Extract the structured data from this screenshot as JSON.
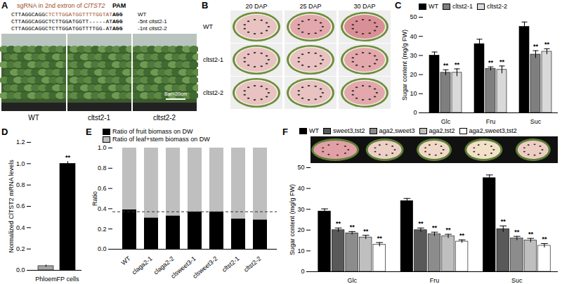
{
  "panels": [
    {
      "panel": "A",
      "type": "diagram",
      "heading": {
        "text": "sgRNA in 2nd extron of ",
        "gene": "ClTST2",
        "pam": "PAM"
      },
      "sequences": [
        {
          "prefix": "CTTAGGCAGG",
          "target": "CTCTTGGATGGTTTTGGTAT",
          "pam": "AGG",
          "label": "WT"
        },
        {
          "prefix": "CTTAGGCAGGCTCTTGGATGGTT-----AT",
          "pam": "AGG",
          "label": "-5nt cltst2-1"
        },
        {
          "prefix": "CTTAGGCAGGCTCTTGGATGGTTTTGG-AT",
          "pam": "AGG",
          "label": "-1nt cltst2-2"
        }
      ],
      "photo": {
        "scale_bar": "Bar=20cm",
        "labels": [
          "WT",
          "cltst2-1",
          "cltst2-2"
        ]
      }
    },
    {
      "panel": "B",
      "type": "photo_grid",
      "columns": [
        "20 DAP",
        "25 DAP",
        "30 DAP"
      ],
      "rows": [
        "WT",
        "cltst2-1",
        "cltst2-2"
      ]
    }
  ],
  "chart_data": [
    {
      "panel": "C",
      "type": "bar",
      "ylabel": "Sugar content (mg/g FW)",
      "categories": [
        "Glc",
        "Fru",
        "Suc"
      ],
      "series": [
        {
          "name": "WT",
          "color": "#000000",
          "values": [
            30,
            36,
            45
          ],
          "errors": [
            1.8,
            2.5,
            2.5
          ]
        },
        {
          "name": "cltst2-1",
          "color": "#7f7f7f",
          "values": [
            21,
            23,
            30.5
          ],
          "errors": [
            1.5,
            1,
            2
          ]
        },
        {
          "name": "cltst2-2",
          "color": "#d9d9d9",
          "values": [
            21,
            22.5,
            32
          ],
          "errors": [
            2,
            2,
            1.5
          ]
        }
      ],
      "ylim": [
        0,
        50
      ],
      "yticks": [
        0,
        10,
        20,
        30,
        40,
        50
      ],
      "legend": "top",
      "annotations": [
        {
          "category": "Glc",
          "series": "cltst2-1",
          "text": "**"
        },
        {
          "category": "Glc",
          "series": "cltst2-2",
          "text": "**"
        },
        {
          "category": "Fru",
          "series": "cltst2-1",
          "text": "**"
        },
        {
          "category": "Fru",
          "series": "cltst2-2",
          "text": "**"
        },
        {
          "category": "Suc",
          "series": "cltst2-1",
          "text": "**"
        },
        {
          "category": "Suc",
          "series": "cltst2-2",
          "text": "**"
        }
      ]
    },
    {
      "panel": "D",
      "type": "bar",
      "ylabel": "Normalized ClTST2 mRNA levels",
      "categories": [
        "Phloem",
        "FP cells"
      ],
      "values": [
        0.04,
        1.0
      ],
      "errors": [
        0.01,
        0.02
      ],
      "colors": [
        "#a6a6a6",
        "#000000"
      ],
      "ylim": [
        0,
        1.2
      ],
      "yticks": [
        {
          "value": 0,
          "label": "0.0"
        },
        {
          "value": 0.2,
          "label": "0.2"
        },
        {
          "value": 0.4,
          "label": "0.4"
        },
        {
          "value": 0.6,
          "label": "0.6"
        },
        {
          "value": 0.8,
          "label": "0.8"
        },
        {
          "value": 1,
          "label": "1.0"
        },
        {
          "value": 1.2,
          "label": "1.2"
        }
      ],
      "annotations": [
        {
          "category": "FP cells",
          "text": "**"
        }
      ]
    },
    {
      "panel": "E",
      "type": "bar",
      "stacked": true,
      "ylabel": "Ratio",
      "categories": [
        "WT",
        "claga2-1",
        "claga2-2",
        "clsweet3-1",
        "clsweet3-2",
        "cltst2-1",
        "cltst2-2"
      ],
      "series": [
        {
          "name": "Ratio of fruit biomass on DW",
          "color": "#000000",
          "values": [
            0.39,
            0.31,
            0.33,
            0.37,
            0.37,
            0.3,
            0.29
          ]
        },
        {
          "name": "Ratio of leaf+stem biomass on DW",
          "color": "#bfbfbf",
          "values": [
            0.61,
            0.69,
            0.67,
            0.63,
            0.63,
            0.7,
            0.71
          ]
        }
      ],
      "reference_line": 0.37,
      "ylim": [
        0,
        1
      ],
      "yticks": [
        {
          "value": 0,
          "label": "0.0"
        },
        {
          "value": 0.2,
          "label": "0.2"
        },
        {
          "value": 0.4,
          "label": "0.4"
        },
        {
          "value": 0.6,
          "label": "0.6"
        },
        {
          "value": 0.8,
          "label": "0.8"
        },
        {
          "value": 1,
          "label": "1.0"
        }
      ],
      "legend": "top"
    },
    {
      "panel": "F",
      "type": "bar",
      "ylabel": "Sugar content (mg/g FW)",
      "categories": [
        "Glc",
        "Fru",
        "Suc"
      ],
      "series": [
        {
          "name": "WT",
          "color": "#000000",
          "values": [
            29,
            34,
            45
          ],
          "errors": [
            1.2,
            1.2,
            1.5
          ]
        },
        {
          "name": "sweet3,tst2",
          "color": "#595959",
          "values": [
            20,
            20,
            20.5
          ],
          "errors": [
            1,
            1,
            1.5
          ]
        },
        {
          "name": "aga2,sweet3",
          "color": "#8c8c8c",
          "values": [
            18.5,
            18,
            16
          ],
          "errors": [
            0.8,
            1,
            1
          ]
        },
        {
          "name": "aga2,tst2",
          "color": "#bfbfbf",
          "values": [
            16.5,
            17,
            15
          ],
          "errors": [
            1,
            1,
            1
          ]
        },
        {
          "name": "aga2,sweet3,tst2",
          "color": "#ffffff",
          "values": [
            13,
            14.5,
            12.5
          ],
          "errors": [
            1,
            0.8,
            1
          ]
        }
      ],
      "ylim": [
        0,
        50
      ],
      "yticks": [
        0,
        10,
        20,
        30,
        40,
        50
      ],
      "legend": "top",
      "annotations": [
        {
          "category": "Glc",
          "series": "sweet3,tst2",
          "text": "**"
        },
        {
          "category": "Glc",
          "series": "aga2,sweet3",
          "text": "**"
        },
        {
          "category": "Glc",
          "series": "aga2,tst2",
          "text": "**"
        },
        {
          "category": "Glc",
          "series": "aga2,sweet3,tst2",
          "text": "**"
        },
        {
          "category": "Fru",
          "series": "sweet3,tst2",
          "text": "**"
        },
        {
          "category": "Fru",
          "series": "aga2,sweet3",
          "text": "**"
        },
        {
          "category": "Fru",
          "series": "aga2,tst2",
          "text": "**"
        },
        {
          "category": "Fru",
          "series": "aga2,sweet3,tst2",
          "text": "**"
        },
        {
          "category": "Suc",
          "series": "sweet3,tst2",
          "text": "**"
        },
        {
          "category": "Suc",
          "series": "aga2,sweet3",
          "text": "**"
        },
        {
          "category": "Suc",
          "series": "aga2,tst2",
          "text": "**"
        },
        {
          "category": "Suc",
          "series": "aga2,sweet3,tst2",
          "text": "**"
        }
      ]
    }
  ]
}
